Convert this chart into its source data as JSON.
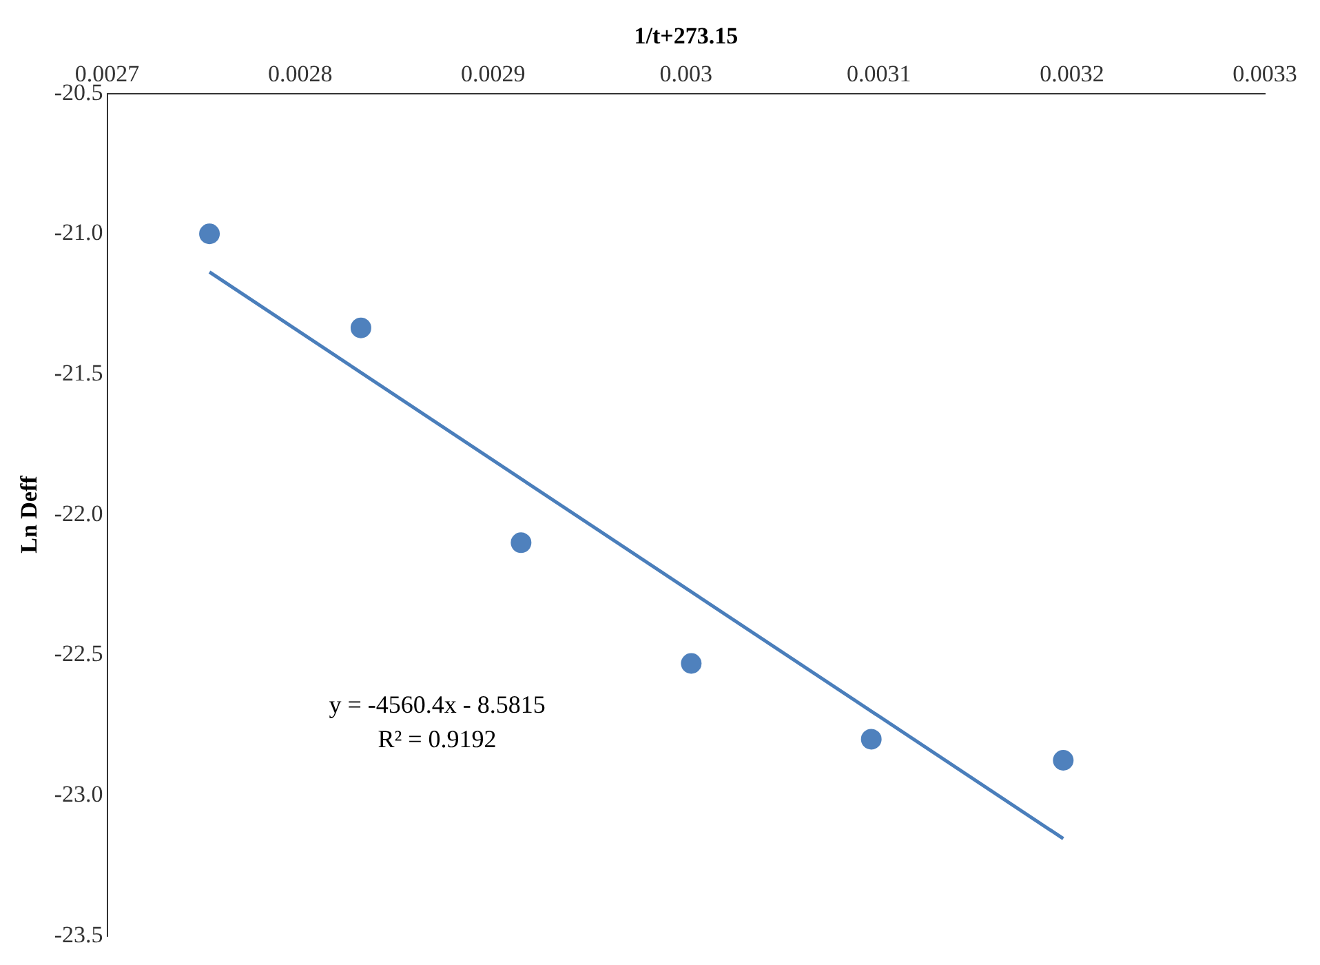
{
  "chart_data": {
    "type": "scatter",
    "xlabel": "1/t+273.15",
    "ylabel": "Ln Deff",
    "xlim": [
      0.0027,
      0.0033
    ],
    "xticks": [
      0.0027,
      0.0028,
      0.0029,
      0.003,
      0.0031,
      0.0032,
      0.0033
    ],
    "ylim": [
      -23.5,
      -20.5
    ],
    "yticks": [
      -23.5,
      {
        "value": -23,
        "label": "-23.0"
      },
      -22.5,
      {
        "value": -22,
        "label": "-22.0"
      },
      -21.5,
      {
        "value": -21,
        "label": "-21.0"
      },
      -20.5
    ],
    "grid": false,
    "legend": false,
    "marker": "circle",
    "series": [
      {
        "type": "scatter",
        "color": "#4f81bd",
        "x": [
          0.002753,
          0.0028315,
          0.0029145,
          0.0030027,
          0.003096,
          0.0031955
        ],
        "values": [
          -21.0,
          -21.335,
          -22.1,
          -22.53,
          -22.8,
          -22.875
        ]
      },
      {
        "type": "line",
        "color": "#4a7ebb",
        "line_style": "solid",
        "marker": "none",
        "x": [
          0.002753,
          0.0031955
        ],
        "values": [
          -21.136,
          -23.154
        ]
      }
    ],
    "annotations": [
      "y = -4560.4x - 8.5815",
      "R² = 0.9192"
    ]
  }
}
